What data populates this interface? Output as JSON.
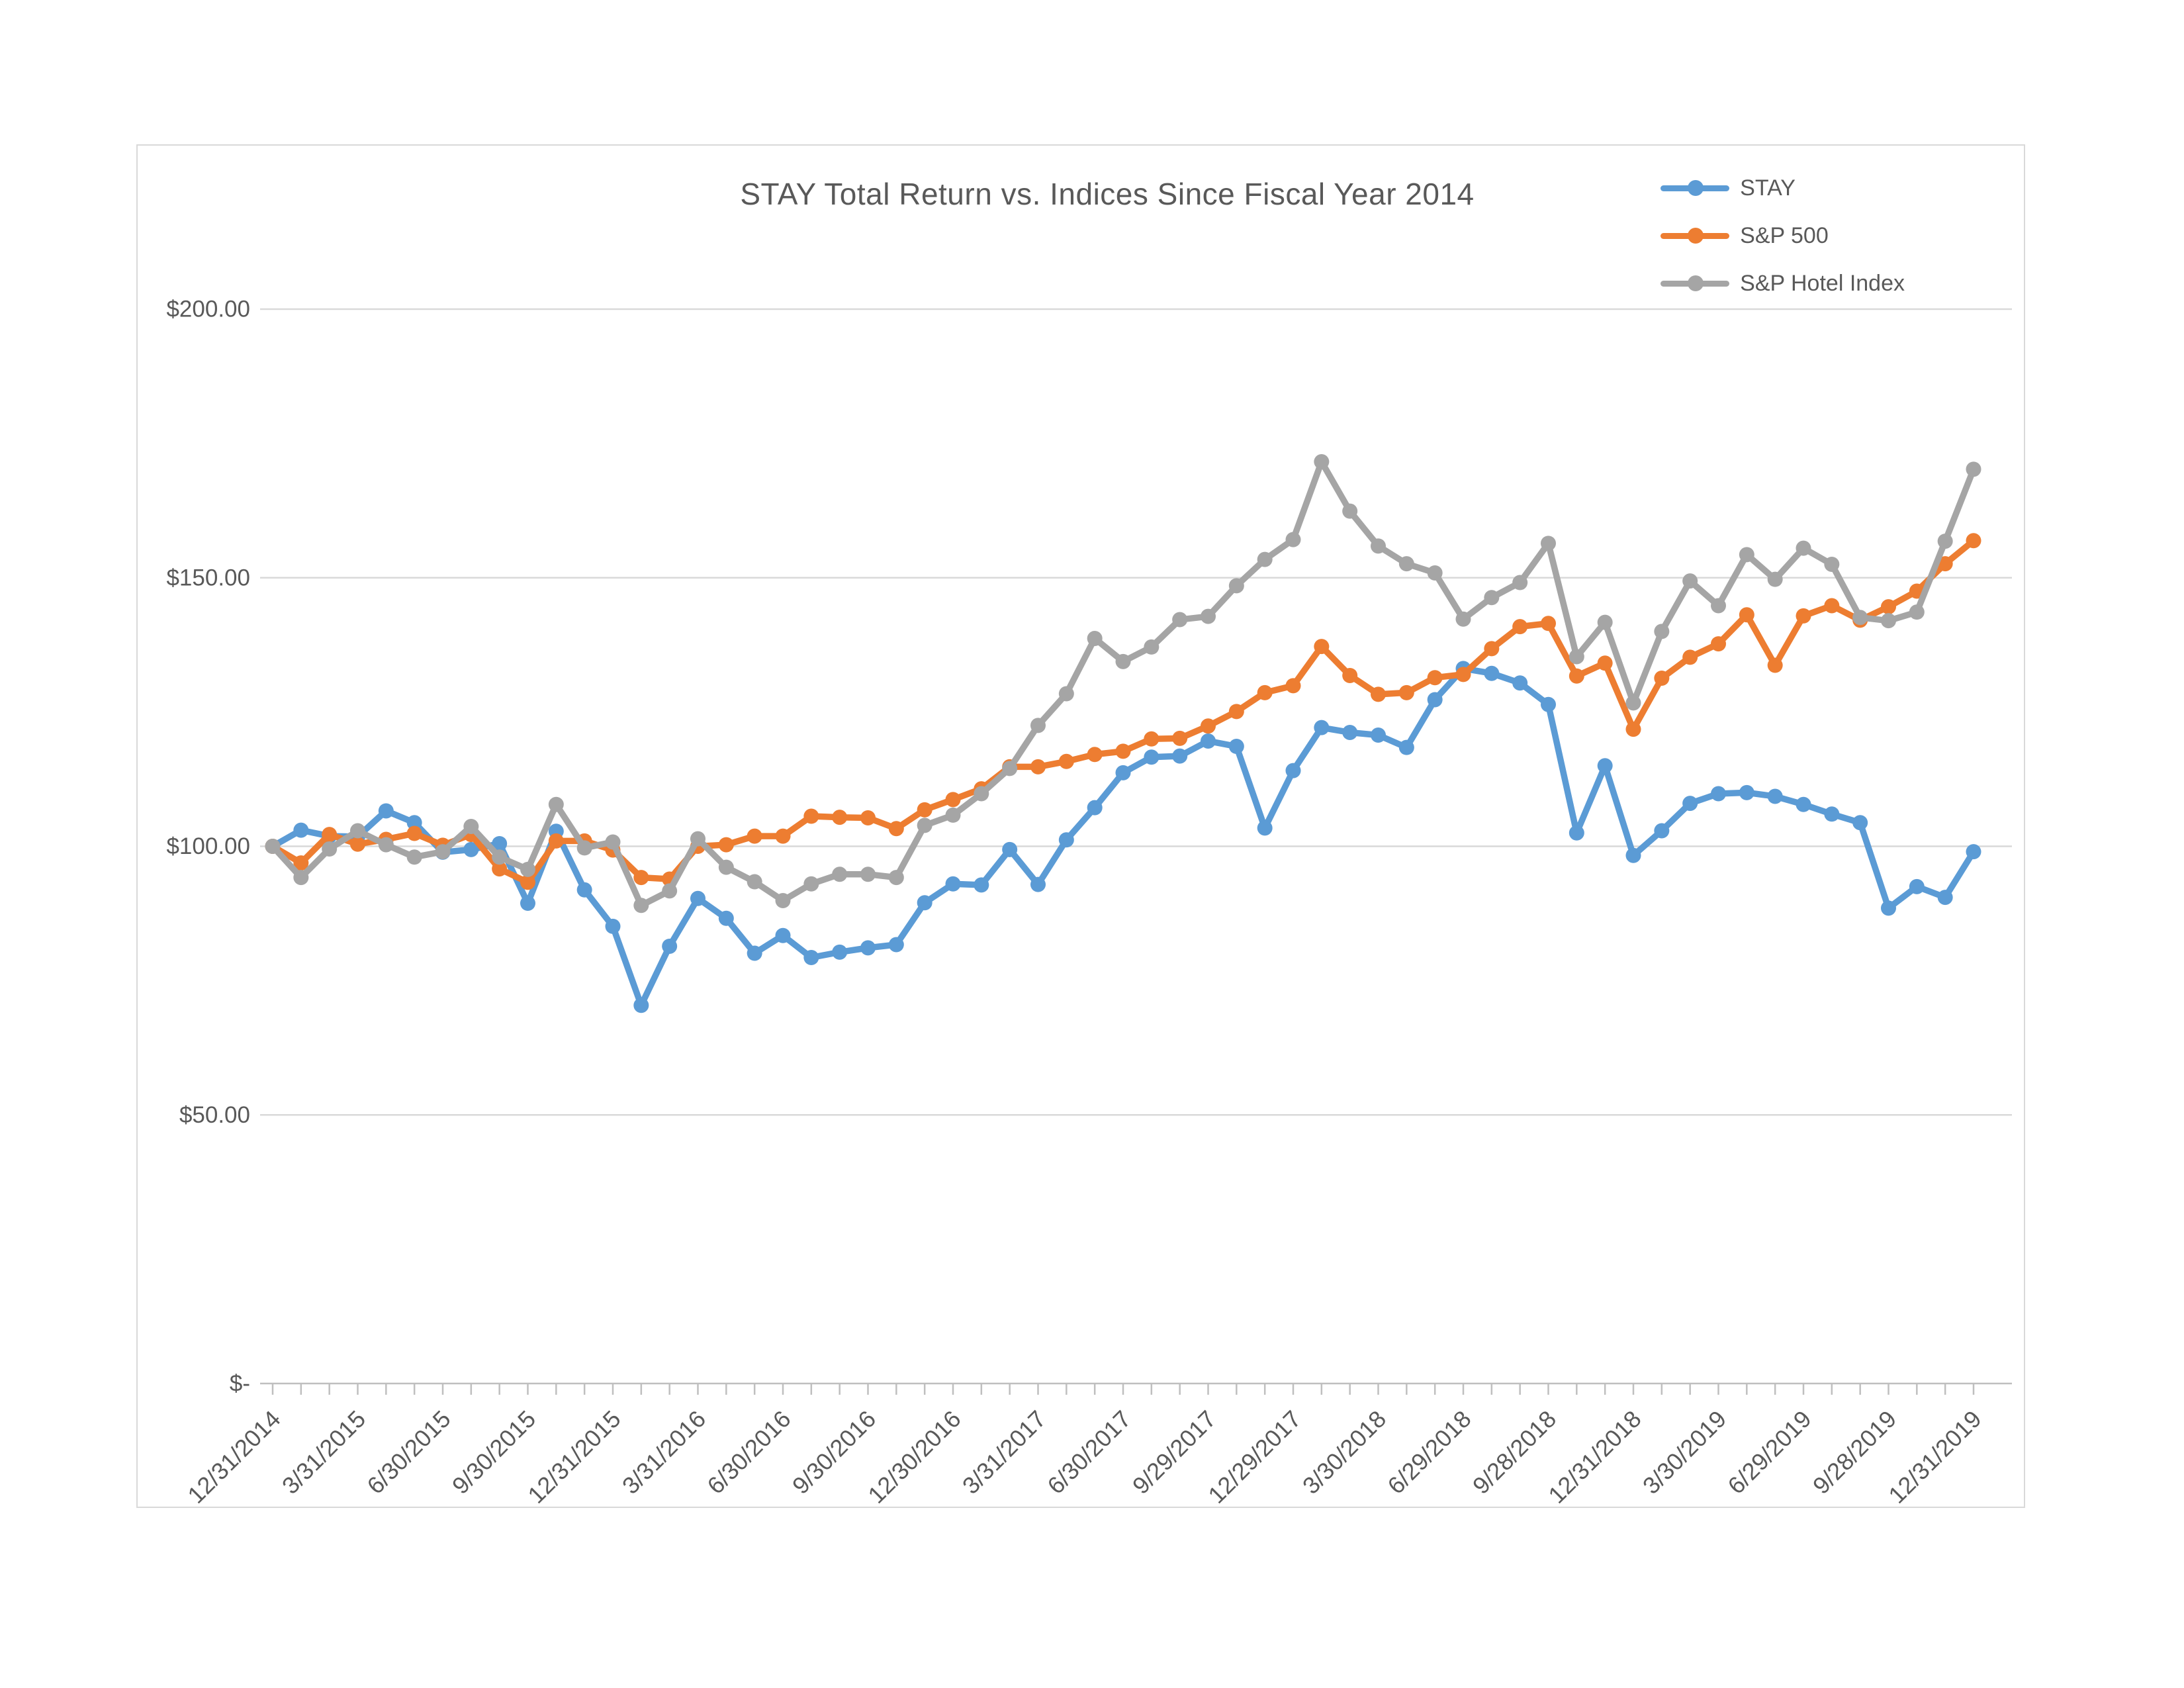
{
  "title": "STAY Total Return vs. Indices Since Fiscal Year 2014",
  "legend": {
    "items": [
      {
        "label": "STAY",
        "color": "#5B9BD5"
      },
      {
        "label": "S&P 500",
        "color": "#ED7D31"
      },
      {
        "label": "S&P Hotel Index",
        "color": "#A5A5A5"
      }
    ]
  },
  "colors": {
    "text": "#595959",
    "gridline": "#d9d9d9",
    "axis": "#bfbfbf",
    "border": "#d9d9d9",
    "background": "#ffffff"
  },
  "chart_data": {
    "type": "line",
    "title": "STAY Total Return vs. Indices Since Fiscal Year 2014",
    "xlabel": "",
    "ylabel": "",
    "ylim": [
      0,
      215
    ],
    "grid": "horizontal",
    "legend_position": "top-right",
    "n_points": 61,
    "points_per_quarter_label": 3,
    "x_quarter_labels": [
      "12/31/2014",
      "3/31/2015",
      "6/30/2015",
      "9/30/2015",
      "12/31/2015",
      "3/31/2016",
      "6/30/2016",
      "9/30/2016",
      "12/30/2016",
      "3/31/2017",
      "6/30/2017",
      "9/29/2017",
      "12/29/2017",
      "3/30/2018",
      "6/29/2018",
      "9/28/2018",
      "12/31/2018",
      "3/30/2019",
      "6/29/2019",
      "9/28/2019",
      "12/31/2019"
    ],
    "y_ticks": [
      {
        "label": "$200.00",
        "value": 200
      },
      {
        "label": "$150.00",
        "value": 150
      },
      {
        "label": "$100.00",
        "value": 100
      },
      {
        "label": "$50.00",
        "value": 50
      },
      {
        "label": "$-",
        "value": 0
      }
    ],
    "series": [
      {
        "name": "STAY",
        "color": "#5B9BD5",
        "values": [
          100,
          103,
          101.9,
          101.8,
          106.6,
          104.4,
          98.9,
          99.4,
          100.5,
          89.4,
          102.8,
          91.9,
          85.1,
          70.4,
          81.4,
          90.3,
          86.6,
          80.1,
          83.4,
          79.3,
          80.3,
          81.1,
          81.7,
          89.5,
          93,
          92.8,
          99.4,
          92.9,
          101.2,
          107.2,
          113.7,
          116.6,
          116.8,
          119.6,
          118.6,
          103.4,
          114.1,
          122.1,
          121.2,
          120.7,
          118.4,
          127.3,
          133.1,
          132.2,
          130.4,
          126.4,
          102.5,
          115,
          98.3,
          102.9,
          108,
          109.8,
          110,
          109.3,
          107.8,
          106,
          104.4,
          88.5,
          92.5,
          90.5,
          99
        ]
      },
      {
        "name": "S&P 500",
        "color": "#ED7D31",
        "values": [
          100,
          96.9,
          102.2,
          100.4,
          101.3,
          102.4,
          100.2,
          102.2,
          95.8,
          93.3,
          101,
          101,
          99.3,
          94.2,
          93.9,
          100,
          100.3,
          101.9,
          101.9,
          105.6,
          105.4,
          105.3,
          103.3,
          106.8,
          108.7,
          110.7,
          114.8,
          114.8,
          115.8,
          117.1,
          117.7,
          120,
          120.1,
          122.4,
          125.1,
          128.6,
          129.9,
          137.2,
          131.8,
          128.3,
          128.6,
          131.4,
          132,
          136.8,
          140.9,
          141.5,
          131.7,
          134.1,
          121.8,
          131.3,
          135.2,
          137.7,
          143.1,
          133.7,
          142.9,
          144.8,
          142.1,
          144.6,
          147.5,
          152.6,
          156.9
        ]
      },
      {
        "name": "S&P Hotel Index",
        "color": "#A5A5A5",
        "values": [
          100,
          94.2,
          99.5,
          102.9,
          100.3,
          98,
          99,
          103.7,
          98,
          95.7,
          107.8,
          99.7,
          100.8,
          89,
          91.7,
          101.4,
          96.1,
          93.4,
          89.9,
          93,
          94.8,
          94.8,
          94.2,
          103.9,
          105.8,
          109.8,
          114.5,
          122.5,
          128.4,
          138.7,
          134.4,
          137.1,
          142.2,
          142.8,
          148.5,
          153.4,
          157.1,
          171.6,
          162.4,
          155.9,
          152.6,
          150.9,
          142.3,
          146.3,
          149.1,
          156.4,
          135.3,
          141.7,
          126.7,
          140,
          149.4,
          144.8,
          154.3,
          149.7,
          155.5,
          152.5,
          142.6,
          142,
          143.6,
          156.8,
          170.2
        ]
      }
    ]
  }
}
